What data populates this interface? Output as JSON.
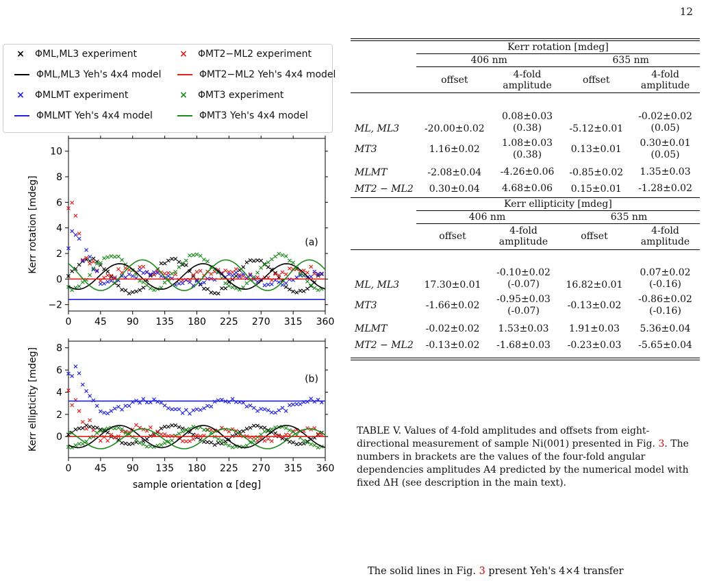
{
  "page_number": "12",
  "legend": [
    {
      "label": "ΦML,ML3 experiment",
      "marker": "×",
      "color": "#000000",
      "kind": "marker"
    },
    {
      "label": "ΦMT2−ML2 experiment",
      "marker": "×",
      "color": "#e0201b",
      "kind": "marker"
    },
    {
      "label": "ΦML,ML3 Yeh's 4x4 model",
      "color": "#000000",
      "kind": "line"
    },
    {
      "label": "ΦMT2−ML2 Yeh's 4x4 model",
      "color": "#e0201b",
      "kind": "line"
    },
    {
      "label": "ΦMLMT experiment",
      "marker": "×",
      "color": "#1f1fe0",
      "kind": "marker"
    },
    {
      "label": "ΦMT3 experiment",
      "marker": "×",
      "color": "#1a8a1a",
      "kind": "marker"
    },
    {
      "label": "ΦMLMT Yeh's 4x4 model",
      "color": "#1f1fe0",
      "kind": "line"
    },
    {
      "label": "ΦMT3 Yeh's 4x4 model",
      "color": "#1a8a1a",
      "kind": "line"
    }
  ],
  "chart_data": [
    {
      "type": "scatter",
      "panel_label": "(a)",
      "ylabel": "Kerr rotation [mdeg]",
      "xlim": [
        0,
        360
      ],
      "ylim": [
        -2.5,
        11
      ],
      "xticks": [
        0,
        45,
        90,
        135,
        180,
        225,
        270,
        315,
        360
      ],
      "yticks": [
        -2,
        0,
        2,
        4,
        6,
        8,
        10
      ],
      "series": [
        {
          "name": "ΦML,ML3 experiment",
          "color": "#000000",
          "style": "x",
          "offset": 0.3,
          "amp": 1.3,
          "noise": 0.15
        },
        {
          "name": "ΦMT2−ML2 experiment",
          "color": "#e0201b",
          "style": "x",
          "offset": 0.5,
          "amp": 0.3,
          "noise": 0.3
        },
        {
          "name": "ΦMLMT experiment",
          "color": "#1f1fe0",
          "style": "x",
          "offset": 0.1,
          "amp": 0.4,
          "noise": 0.3
        },
        {
          "name": "ΦMT3 experiment",
          "color": "#1a8a1a",
          "style": "x",
          "offset": 0.6,
          "amp": 1.3,
          "noise": 0.15
        },
        {
          "name": "ΦML,ML3 Yeh's 4x4 model",
          "color": "#000000",
          "style": "line",
          "offset": 0.2,
          "amp": 1.0
        },
        {
          "name": "ΦMT2−ML2 Yeh's 4x4 model",
          "color": "#e0201b",
          "style": "line",
          "offset": 0.0,
          "amp": 0.0
        },
        {
          "name": "ΦMLMT Yeh's 4x4 model",
          "color": "#1f1fe0",
          "style": "line",
          "offset": -1.6,
          "amp": 0.0
        },
        {
          "name": "ΦMT3 Yeh's 4x4 model",
          "color": "#1a8a1a",
          "style": "line",
          "offset": 0.3,
          "amp": 1.2
        }
      ]
    },
    {
      "type": "scatter",
      "panel_label": "(b)",
      "ylabel": "Kerr ellipticity [mdeg]",
      "xlabel": "sample orientation α [deg]",
      "xlim": [
        0,
        360
      ],
      "ylim": [
        -1.9,
        8.6
      ],
      "xticks": [
        0,
        45,
        90,
        135,
        180,
        225,
        270,
        315,
        360
      ],
      "yticks": [
        0,
        2,
        4,
        6,
        8
      ],
      "series": [
        {
          "name": "ΦML,ML3 experiment",
          "color": "#000000",
          "style": "x",
          "offset": 0.2,
          "amp": 0.8,
          "noise": 0.1
        },
        {
          "name": "ΦMT2−ML2 experiment",
          "color": "#e0201b",
          "style": "x",
          "offset": 0.3,
          "amp": 0.5,
          "noise": 0.3
        },
        {
          "name": "ΦMLMT experiment",
          "color": "#1f1fe0",
          "style": "x",
          "offset": 2.8,
          "amp": 0.5,
          "noise": 0.2
        },
        {
          "name": "ΦMT3 experiment",
          "color": "#1a8a1a",
          "style": "x",
          "offset": 0.0,
          "amp": 0.9,
          "noise": 0.1
        },
        {
          "name": "ΦML,ML3 Yeh's 4x4 model",
          "color": "#000000",
          "style": "line",
          "offset": 0.0,
          "amp": 1.0
        },
        {
          "name": "ΦMT2−ML2 Yeh's 4x4 model",
          "color": "#e0201b",
          "style": "line",
          "offset": 0.0,
          "amp": 0.0
        },
        {
          "name": "ΦMLMT Yeh's 4x4 model",
          "color": "#1f1fe0",
          "style": "line",
          "offset": 3.2,
          "amp": 0.0
        },
        {
          "name": "ΦMT3 Yeh's 4x4 model",
          "color": "#1a8a1a",
          "style": "line",
          "offset": -0.2,
          "amp": 0.9
        }
      ]
    }
  ],
  "table": {
    "headers": {
      "kerr_rotation": "Kerr rotation [mdeg]",
      "kerr_ellipticity": "Kerr ellipticity [mdeg]",
      "wl1": "406 nm",
      "wl2": "635 nm",
      "offset": "offset",
      "fourfold": "4-fold",
      "amplitude": "amplitude"
    },
    "rotation_rows": [
      {
        "label": "ML, ML3",
        "c1": "-20.00±0.02",
        "c2a": "0.08±0.03",
        "c2b": "(0.38)",
        "c3": "-5.12±0.01",
        "c4a": "-0.02±0.02",
        "c4b": "(0.05)"
      },
      {
        "label": "MT3",
        "c1": "1.16±0.02",
        "c2a": "1.08±0.03",
        "c2b": "(0.38)",
        "c3": "0.13±0.01",
        "c4a": "0.30±0.01",
        "c4b": "(0.05)"
      },
      {
        "label": "MLMT",
        "c1": "-2.08±0.04",
        "c2a": "-4.26±0.06",
        "c2b": "",
        "c3": "-0.85±0.02",
        "c4a": "1.35±0.03",
        "c4b": ""
      },
      {
        "label": "MT2 − ML2",
        "c1": "0.30±0.04",
        "c2a": "4.68±0.06",
        "c2b": "",
        "c3": "0.15±0.01",
        "c4a": "-1.28±0.02",
        "c4b": ""
      }
    ],
    "ellipticity_rows": [
      {
        "label": "ML, ML3",
        "c1": "17.30±0.01",
        "c2a": "-0.10±0.02",
        "c2b": "(-0.07)",
        "c3": "16.82±0.01",
        "c4a": "0.07±0.02",
        "c4b": "(-0.16)"
      },
      {
        "label": "MT3",
        "c1": "-1.66±0.02",
        "c2a": "-0.95±0.03",
        "c2b": "(-0.07)",
        "c3": "-0.13±0.02",
        "c4a": "-0.86±0.02",
        "c4b": "(-0.16)"
      },
      {
        "label": "MLMT",
        "c1": "-0.02±0.02",
        "c2a": "1.53±0.03",
        "c2b": "",
        "c3": "1.91±0.03",
        "c4a": "5.36±0.04",
        "c4b": ""
      },
      {
        "label": "MT2 − ML2",
        "c1": "-0.13±0.02",
        "c2a": "-1.68±0.03",
        "c2b": "",
        "c3": "-0.23±0.03",
        "c4a": "-5.65±0.04",
        "c4b": ""
      }
    ]
  },
  "caption": {
    "part1": "TABLE V. Values of 4-fold amplitudes and offsets from eight-directional measurement of sample Ni(001) presented in Fig. ",
    "ref": "3",
    "part2": ". The numbers in brackets are the values of the four-fold angular dependencies amplitudes A4 predicted by the numerical model with fixed ΔH (see description in the main text)."
  },
  "body_text": {
    "part1": "The solid lines in Fig. ",
    "ref": "3",
    "part2": " present Yeh's 4×4 transfer"
  }
}
